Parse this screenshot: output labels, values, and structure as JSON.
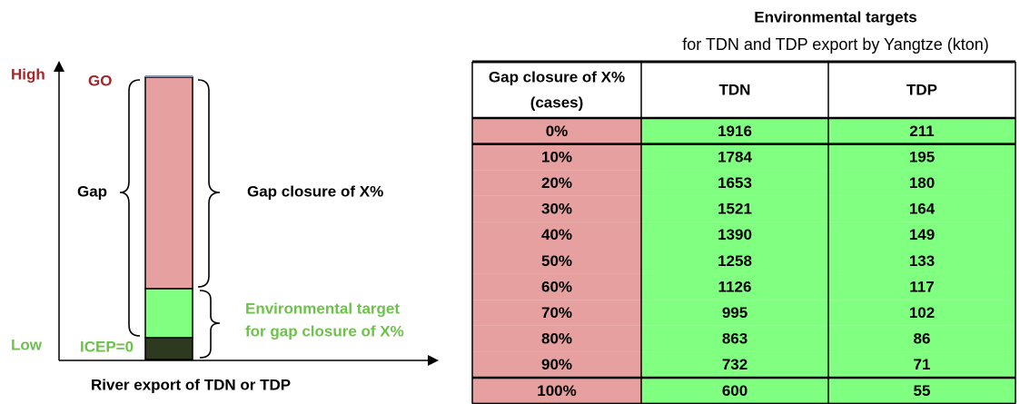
{
  "diagram": {
    "y_high": "High",
    "y_low": "Low",
    "go": "GO",
    "icep": "ICEP=0",
    "gap": "Gap",
    "gap_closure": "Gap closure of X%",
    "env_target": [
      "Environmental target",
      "for gap closure of X%"
    ],
    "x_axis": "River export of TDN or TDP"
  },
  "table": {
    "title": "Environmental targets",
    "subtitle": "for TDN and TDP export by Yangtze (kton)",
    "header": [
      [
        "Gap closure of X%",
        "(cases)"
      ],
      "TDN",
      "TDP"
    ],
    "rows": [
      [
        "0%",
        "1916",
        "211"
      ],
      [
        "10%",
        "1784",
        "195"
      ],
      [
        "20%",
        "1653",
        "180"
      ],
      [
        "30%",
        "1521",
        "164"
      ],
      [
        "40%",
        "1390",
        "149"
      ],
      [
        "50%",
        "1258",
        "133"
      ],
      [
        "60%",
        "1126",
        "117"
      ],
      [
        "70%",
        "995",
        "102"
      ],
      [
        "80%",
        "863",
        "86"
      ],
      [
        "90%",
        "732",
        "71"
      ],
      [
        "100%",
        "600",
        "55"
      ]
    ]
  }
}
